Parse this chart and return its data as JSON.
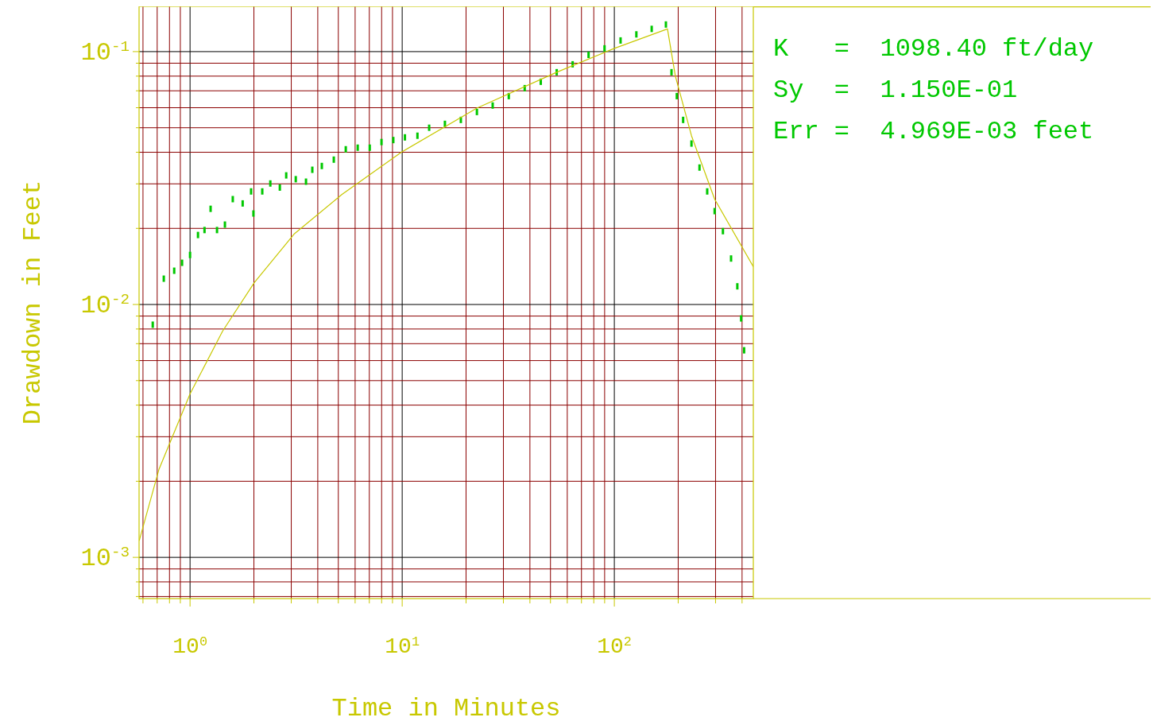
{
  "chart_data": {
    "type": "scatter",
    "xlabel": "Time in Minutes",
    "ylabel": "Drawdown in Feet",
    "log": "xy",
    "grid": true,
    "xlim": [
      0.575,
      452
    ],
    "ylim": [
      0.000687,
      0.151
    ],
    "xticks": [
      {
        "value": 0.6,
        "label": null
      },
      {
        "value": 0.7,
        "label": null
      },
      {
        "value": 0.8,
        "label": null
      },
      {
        "value": 0.9,
        "label": null
      },
      {
        "value": 1,
        "label": "10$^{0}$"
      },
      {
        "value": 2,
        "label": null
      },
      {
        "value": 3,
        "label": null
      },
      {
        "value": 4,
        "label": null
      },
      {
        "value": 5,
        "label": null
      },
      {
        "value": 6,
        "label": null
      },
      {
        "value": 7,
        "label": null
      },
      {
        "value": 8,
        "label": null
      },
      {
        "value": 9,
        "label": null
      },
      {
        "value": 10,
        "label": "10$^{1}$"
      },
      {
        "value": 20,
        "label": null
      },
      {
        "value": 30,
        "label": null
      },
      {
        "value": 40,
        "label": null
      },
      {
        "value": 50,
        "label": null
      },
      {
        "value": 60,
        "label": null
      },
      {
        "value": 70,
        "label": null
      },
      {
        "value": 80,
        "label": null
      },
      {
        "value": 90,
        "label": null
      },
      {
        "value": 100,
        "label": "10$^{2}$"
      },
      {
        "value": 200,
        "label": null
      },
      {
        "value": 300,
        "label": null
      },
      {
        "value": 400,
        "label": null
      }
    ],
    "yticks": [
      {
        "value": 0.0007,
        "label": null
      },
      {
        "value": 0.0008,
        "label": null
      },
      {
        "value": 0.0009,
        "label": null
      },
      {
        "value": 0.001,
        "label": "10$^{-3}$"
      },
      {
        "value": 0.002,
        "label": null
      },
      {
        "value": 0.003,
        "label": null
      },
      {
        "value": 0.004,
        "label": null
      },
      {
        "value": 0.005,
        "label": null
      },
      {
        "value": 0.006,
        "label": null
      },
      {
        "value": 0.007,
        "label": null
      },
      {
        "value": 0.008,
        "label": null
      },
      {
        "value": 0.009,
        "label": null
      },
      {
        "value": 0.01,
        "label": "10$^{-2}$"
      },
      {
        "value": 0.02,
        "label": null
      },
      {
        "value": 0.03,
        "label": null
      },
      {
        "value": 0.04,
        "label": null
      },
      {
        "value": 0.05,
        "label": null
      },
      {
        "value": 0.06,
        "label": null
      },
      {
        "value": 0.07,
        "label": null
      },
      {
        "value": 0.08,
        "label": null
      },
      {
        "value": 0.09,
        "label": null
      },
      {
        "value": 0.1,
        "label": "10$^{-1}$"
      }
    ],
    "annotations": [
      "K   =  1098.40 ft/day",
      "Sy  =  1.150E-01",
      "Err =  4.969E-03 feet"
    ],
    "series": [
      {
        "marker": "square",
        "color": "#00c800",
        "x": [
          0.667,
          0.752,
          0.842,
          0.917,
          1.0,
          1.09,
          1.17,
          1.25,
          1.34,
          1.46,
          1.59,
          1.77,
          1.94,
          1.99,
          2.19,
          2.39,
          2.65,
          2.84,
          3.15,
          3.52,
          3.77,
          4.18,
          4.76,
          5.42,
          6.17,
          7.03,
          7.99,
          9.08,
          10.3,
          11.8,
          13.4,
          15.9,
          18.9,
          22.5,
          26.7,
          31.8,
          37.8,
          45.0,
          53.5,
          63.6,
          75.6,
          89.9,
          107,
          127,
          150,
          175,
          186,
          197,
          211,
          231,
          252,
          274,
          297,
          325,
          355,
          380,
          396,
          409
        ],
        "values": [
          0.00832,
          0.01265,
          0.0136,
          0.01462,
          0.0157,
          0.01883,
          0.0197,
          0.0239,
          0.0197,
          0.0207,
          0.0261,
          0.0251,
          0.028,
          0.0229,
          0.028,
          0.0301,
          0.029,
          0.0324,
          0.0313,
          0.0306,
          0.0341,
          0.0353,
          0.0374,
          0.0411,
          0.0417,
          0.0417,
          0.0439,
          0.0447,
          0.0458,
          0.0465,
          0.05,
          0.0518,
          0.0537,
          0.0577,
          0.0612,
          0.0667,
          0.0717,
          0.076,
          0.0829,
          0.0891,
          0.0971,
          0.103,
          0.1107,
          0.117,
          0.123,
          0.128,
          0.0829,
          0.0667,
          0.0537,
          0.0433,
          0.0348,
          0.028,
          0.0234,
          0.0195,
          0.0152,
          0.0118,
          0.00881,
          0.00659
        ]
      },
      {
        "type": "line",
        "color": "#c8c800",
        "x": [
          0.576,
          0.714,
          1.0,
          1.424,
          2.01,
          3.09,
          5.19,
          10,
          22.5,
          53.5,
          100,
          178,
          194,
          231,
          297,
          452
        ],
        "values": [
          0.001164,
          0.002233,
          0.00443,
          0.00785,
          0.01222,
          0.01897,
          0.0272,
          0.0402,
          0.0598,
          0.0829,
          0.103,
          0.123,
          0.0799,
          0.0465,
          0.0261,
          0.0141
        ]
      }
    ]
  }
}
